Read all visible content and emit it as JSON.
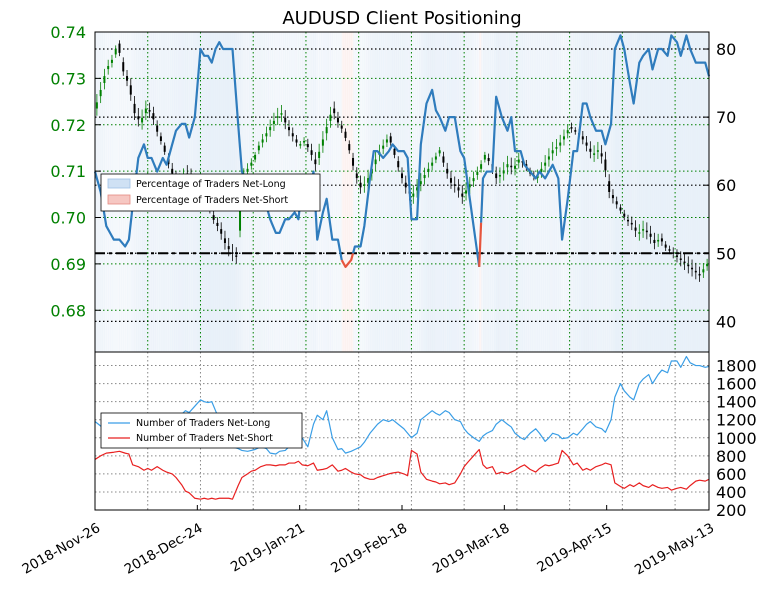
{
  "chart_data": [
    {
      "type": "line",
      "title": "AUDUSD Client Positioning",
      "x_tick_labels": [
        "2018-Nov-26",
        "2018-Dec-24",
        "2019-Jan-21",
        "2019-Feb-18",
        "2019-Mar-18",
        "2019-Apr-15",
        "2019-May-13"
      ],
      "left_axis": {
        "ticks": [
          "0.74",
          "0.73",
          "0.72",
          "0.71",
          "0.70",
          "0.69",
          "0.68"
        ],
        "range": [
          0.671,
          0.74
        ],
        "color": "#008000"
      },
      "right_axis": {
        "ticks": [
          "80",
          "70",
          "60",
          "50",
          "40"
        ],
        "range": [
          35.5,
          82.5
        ]
      },
      "reference_line": {
        "value": 50,
        "style": "dash-dot",
        "color": "#000000"
      },
      "legend": {
        "position": "left",
        "entries": [
          {
            "label": "Percentage of Traders Net-Long",
            "color": "#2171b5"
          },
          {
            "label": "Percentage of Traders Net-Short",
            "color": "#e34a33"
          }
        ]
      },
      "series": [
        {
          "kind": "percent-net-long",
          "axis": "right",
          "x_index": [
            0,
            3,
            6,
            10,
            13,
            16,
            18,
            20,
            23,
            26,
            28,
            30,
            33,
            36,
            38,
            41,
            43,
            46,
            48,
            50,
            53,
            56,
            58,
            60,
            62,
            64,
            66,
            68,
            71,
            73,
            76,
            78,
            81,
            83,
            85,
            88,
            91,
            93,
            96,
            98,
            101,
            103,
            106,
            108,
            110,
            113,
            116,
            118,
            121,
            123,
            126,
            129,
            131,
            133,
            136,
            138,
            141,
            143,
            146,
            148,
            150,
            153,
            156,
            158,
            161,
            164,
            166,
            168,
            171,
            173,
            176,
            179,
            181,
            183,
            186,
            188,
            191,
            194,
            196,
            198,
            201,
            204,
            206,
            208,
            211,
            213,
            216,
            219,
            221,
            223,
            226,
            228,
            231,
            234,
            236,
            239,
            241,
            243,
            246,
            248,
            251,
            254,
            256,
            259,
            261,
            263,
            266,
            269,
            271,
            274,
            276,
            279,
            281,
            284,
            286,
            289,
            291,
            294,
            296,
            299,
            301,
            304,
            306,
            309,
            311,
            314,
            316,
            319,
            321,
            324,
            326
          ],
          "values": [
            62,
            59,
            54,
            52,
            52,
            51,
            52,
            57,
            64,
            66,
            64,
            64,
            62,
            64,
            63,
            66,
            68,
            69,
            69,
            67,
            70,
            80,
            79,
            79,
            78,
            80,
            81,
            80,
            80,
            80,
            69,
            62,
            60,
            60,
            60,
            59,
            57,
            55,
            53,
            53,
            55,
            55,
            56,
            55,
            60,
            57,
            62,
            52,
            56,
            58,
            52,
            52,
            49,
            48,
            49,
            51,
            51,
            54,
            61,
            65,
            65,
            64,
            65,
            66,
            65,
            65,
            64,
            55,
            55,
            66,
            72,
            74,
            71,
            70,
            68,
            70,
            70,
            65,
            64,
            60,
            54,
            48,
            61,
            62,
            62,
            73,
            70,
            68,
            70,
            65,
            65,
            63,
            62,
            61,
            62,
            61,
            62,
            63,
            61,
            52,
            58,
            65,
            65,
            72,
            72,
            70,
            68,
            68,
            66,
            69,
            80,
            82,
            80,
            75,
            72,
            78,
            79,
            80,
            77,
            80,
            80,
            79,
            82,
            81,
            79,
            82,
            80,
            78,
            78,
            78,
            76
          ]
        },
        {
          "kind": "net-long-count",
          "axis": "lower",
          "x_index": [
            0,
            3,
            6,
            10,
            13,
            16,
            18,
            20,
            23,
            26,
            28,
            30,
            33,
            36,
            38,
            41,
            43,
            46,
            48,
            50,
            53,
            56,
            58,
            60,
            62,
            64,
            66,
            68,
            71,
            73,
            76,
            78,
            81,
            83,
            85,
            88,
            91,
            93,
            96,
            98,
            101,
            103,
            106,
            108,
            110,
            113,
            116,
            118,
            121,
            123,
            126,
            129,
            131,
            133,
            136,
            138,
            141,
            143,
            146,
            148,
            150,
            153,
            156,
            158,
            161,
            164,
            166,
            168,
            171,
            173,
            176,
            179,
            181,
            183,
            186,
            188,
            191,
            194,
            196,
            198,
            201,
            204,
            206,
            208,
            211,
            213,
            216,
            219,
            221,
            223,
            226,
            228,
            231,
            234,
            236,
            239,
            241,
            243,
            246,
            248,
            251,
            254,
            256,
            259,
            261,
            263,
            266,
            269,
            271,
            274,
            276,
            279,
            281,
            284,
            286,
            289,
            291,
            294,
            296,
            299,
            301,
            304,
            306,
            309,
            311,
            314,
            316,
            319,
            321,
            324,
            326
          ],
          "values": [
            1180,
            1130,
            1060,
            990,
            1010,
            1030,
            1000,
            1140,
            1100,
            1020,
            1070,
            1090,
            1060,
            1020,
            1080,
            1150,
            1200,
            1260,
            1300,
            1280,
            1350,
            1420,
            1400,
            1390,
            1400,
            1300,
            1200,
            1050,
            960,
            900,
            880,
            860,
            850,
            860,
            870,
            900,
            880,
            830,
            820,
            850,
            860,
            900,
            950,
            930,
            1000,
            900,
            1150,
            1250,
            1200,
            1300,
            1000,
            870,
            880,
            830,
            850,
            870,
            900,
            950,
            1050,
            1100,
            1150,
            1200,
            1180,
            1200,
            1150,
            1100,
            1050,
            1000,
            1050,
            1200,
            1250,
            1300,
            1270,
            1250,
            1300,
            1280,
            1200,
            1180,
            1100,
            1050,
            1000,
            960,
            1020,
            1050,
            1080,
            1150,
            1200,
            1150,
            1120,
            1050,
            1000,
            980,
            1050,
            1100,
            1050,
            960,
            1000,
            1050,
            1030,
            990,
            1000,
            1050,
            1030,
            1100,
            1150,
            1180,
            1120,
            1100,
            1060,
            1200,
            1450,
            1600,
            1520,
            1450,
            1420,
            1600,
            1650,
            1700,
            1600,
            1700,
            1750,
            1720,
            1850,
            1850,
            1780,
            1900,
            1830,
            1800,
            1800,
            1780,
            1790
          ]
        },
        {
          "kind": "net-short-count",
          "axis": "lower",
          "x_index": [
            0,
            3,
            6,
            10,
            13,
            16,
            18,
            20,
            23,
            26,
            28,
            30,
            33,
            36,
            38,
            41,
            43,
            46,
            48,
            50,
            53,
            56,
            58,
            60,
            62,
            64,
            66,
            68,
            71,
            73,
            76,
            78,
            81,
            83,
            85,
            88,
            91,
            93,
            96,
            98,
            101,
            103,
            106,
            108,
            110,
            113,
            116,
            118,
            121,
            123,
            126,
            129,
            131,
            133,
            136,
            138,
            141,
            143,
            146,
            148,
            150,
            153,
            156,
            158,
            161,
            164,
            166,
            168,
            171,
            173,
            176,
            179,
            181,
            183,
            186,
            188,
            191,
            194,
            196,
            198,
            201,
            204,
            206,
            208,
            211,
            213,
            216,
            219,
            221,
            223,
            226,
            228,
            231,
            234,
            236,
            239,
            241,
            243,
            246,
            248,
            251,
            254,
            256,
            259,
            261,
            263,
            266,
            269,
            271,
            274,
            276,
            279,
            281,
            284,
            286,
            289,
            291,
            294,
            296,
            299,
            301,
            304,
            306,
            309,
            311,
            314,
            316,
            319,
            321,
            324,
            326
          ],
          "values": [
            760,
            800,
            830,
            840,
            850,
            830,
            820,
            700,
            680,
            640,
            660,
            640,
            680,
            640,
            620,
            600,
            560,
            480,
            410,
            390,
            330,
            320,
            330,
            320,
            330,
            320,
            330,
            330,
            330,
            320,
            470,
            560,
            600,
            630,
            640,
            680,
            700,
            700,
            690,
            700,
            700,
            720,
            720,
            740,
            700,
            690,
            720,
            640,
            650,
            660,
            700,
            630,
            640,
            660,
            620,
            600,
            590,
            560,
            540,
            540,
            560,
            580,
            600,
            610,
            620,
            600,
            580,
            860,
            820,
            620,
            540,
            520,
            510,
            490,
            500,
            480,
            500,
            600,
            680,
            730,
            800,
            870,
            700,
            660,
            680,
            600,
            620,
            600,
            620,
            640,
            680,
            700,
            650,
            620,
            660,
            700,
            690,
            700,
            720,
            860,
            800,
            700,
            720,
            640,
            660,
            640,
            680,
            700,
            720,
            700,
            500,
            460,
            440,
            480,
            460,
            500,
            470,
            450,
            480,
            450,
            440,
            450,
            420,
            440,
            450,
            430,
            470,
            520,
            530,
            520,
            540
          ]
        }
      ],
      "price_ohlc_note": "Daily candlestick bars of AUDUSD price plotted against the left axis; red bars denote down closes, green up closes."
    },
    {
      "type": "line",
      "left_axis": {
        "ticks": []
      },
      "right_axis": {
        "ticks": [
          "1800",
          "1600",
          "1400",
          "1200",
          "1000",
          "800",
          "600",
          "400",
          "200"
        ],
        "range": [
          200,
          1950
        ]
      },
      "legend": {
        "position": "left",
        "entries": [
          {
            "label": "Number of Traders Net-Long",
            "color": "#3a9ee6"
          },
          {
            "label": "Number of Traders Net-Short",
            "color": "#e82020"
          }
        ]
      }
    }
  ],
  "price": {
    "x_index": [
      0,
      3,
      6,
      9,
      12,
      15,
      18,
      21,
      24,
      27,
      30,
      33,
      36,
      39,
      42,
      45,
      48,
      51,
      54,
      57,
      60,
      63,
      66,
      69,
      72,
      75,
      78,
      81,
      84,
      87,
      90,
      93,
      96,
      99,
      102,
      105,
      108,
      111,
      114,
      117,
      120,
      123,
      126,
      129,
      132,
      135,
      138,
      141,
      144,
      147,
      150,
      153,
      156,
      159,
      162,
      165,
      168,
      171,
      174,
      177,
      180,
      183,
      186,
      189,
      192,
      195,
      198,
      201,
      204,
      207,
      210,
      213,
      216,
      219,
      222,
      225,
      228,
      231,
      234,
      237,
      240,
      243,
      246,
      249,
      252,
      255,
      258,
      261,
      264,
      267,
      270,
      273,
      276,
      279,
      282,
      285,
      288,
      291,
      294,
      297,
      300,
      303,
      306,
      309,
      312,
      315,
      318,
      321,
      324,
      326
    ],
    "values": [
      0.7235,
      0.7275,
      0.732,
      0.734,
      0.7375,
      0.7315,
      0.7285,
      0.7225,
      0.7205,
      0.7235,
      0.7225,
      0.7185,
      0.7155,
      0.7115,
      0.7085,
      0.7075,
      0.7095,
      0.7085,
      0.7065,
      0.7045,
      0.7025,
      0.6995,
      0.6975,
      0.6945,
      0.6925,
      0.6915,
      0.7085,
      0.7105,
      0.7125,
      0.7155,
      0.7175,
      0.7195,
      0.7215,
      0.7225,
      0.7195,
      0.7175,
      0.7155,
      0.7165,
      0.7145,
      0.7115,
      0.7155,
      0.7195,
      0.7235,
      0.7205,
      0.7185,
      0.7145,
      0.7095,
      0.7065,
      0.7075,
      0.7105,
      0.7135,
      0.7155,
      0.7175,
      0.7135,
      0.7095,
      0.7065,
      0.7045,
      0.7065,
      0.7085,
      0.7105,
      0.7125,
      0.7145,
      0.7105,
      0.7075,
      0.7065,
      0.7045,
      0.7065,
      0.7085,
      0.7105,
      0.7135,
      0.7115,
      0.7085,
      0.7095,
      0.7115,
      0.7105,
      0.7125,
      0.7115,
      0.7095,
      0.7085,
      0.7105,
      0.7125,
      0.7145,
      0.7155,
      0.7175,
      0.7195,
      0.7185,
      0.7175,
      0.7155,
      0.7135,
      0.7145,
      0.7125,
      0.7055,
      0.7035,
      0.7015,
      0.6995,
      0.6985,
      0.6965,
      0.6975,
      0.6965,
      0.6945,
      0.6955,
      0.6935,
      0.6925,
      0.6915,
      0.6905,
      0.6895,
      0.6885,
      0.6875,
      0.6895,
      0.6905
    ]
  }
}
